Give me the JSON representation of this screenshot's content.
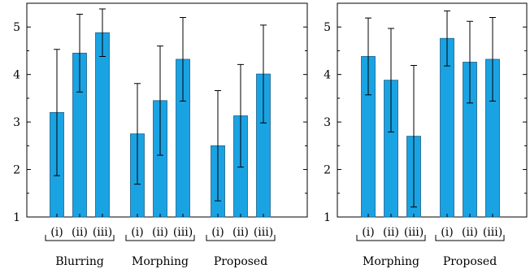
{
  "colors": {
    "bar": "#1aa3e3"
  },
  "chart_data": [
    {
      "type": "bar",
      "ylim": [
        1,
        5.5
      ],
      "yticks": [
        "1",
        "2",
        "3",
        "4",
        "5"
      ],
      "categories": [
        "(i)",
        "(ii)",
        "(iii)",
        "(i)",
        "(ii)",
        "(iii)",
        "(i)",
        "(ii)",
        "(iii)"
      ],
      "groups": [
        {
          "label": "Blurring",
          "start": 0,
          "end": 2
        },
        {
          "label": "Morphing",
          "start": 3,
          "end": 5
        },
        {
          "label": "Proposed",
          "start": 6,
          "end": 8
        }
      ],
      "values": [
        3.2,
        4.45,
        4.88,
        2.75,
        3.45,
        4.32,
        2.5,
        3.13,
        4.01
      ],
      "errors": [
        1.33,
        0.82,
        0.5,
        1.06,
        1.15,
        0.88,
        1.16,
        1.08,
        1.03
      ],
      "grid": false
    },
    {
      "type": "bar",
      "ylim": [
        1,
        5.5
      ],
      "yticks": [
        "1",
        "2",
        "3",
        "4",
        "5"
      ],
      "categories": [
        "(i)",
        "(ii)",
        "(iii)",
        "(i)",
        "(ii)",
        "(iii)"
      ],
      "groups": [
        {
          "label": "Morphing",
          "start": 0,
          "end": 2
        },
        {
          "label": "Proposed",
          "start": 3,
          "end": 5
        }
      ],
      "values": [
        4.38,
        3.88,
        2.7,
        4.76,
        4.26,
        4.32
      ],
      "errors": [
        0.81,
        1.09,
        1.49,
        0.58,
        0.86,
        0.88
      ],
      "grid": false
    }
  ]
}
